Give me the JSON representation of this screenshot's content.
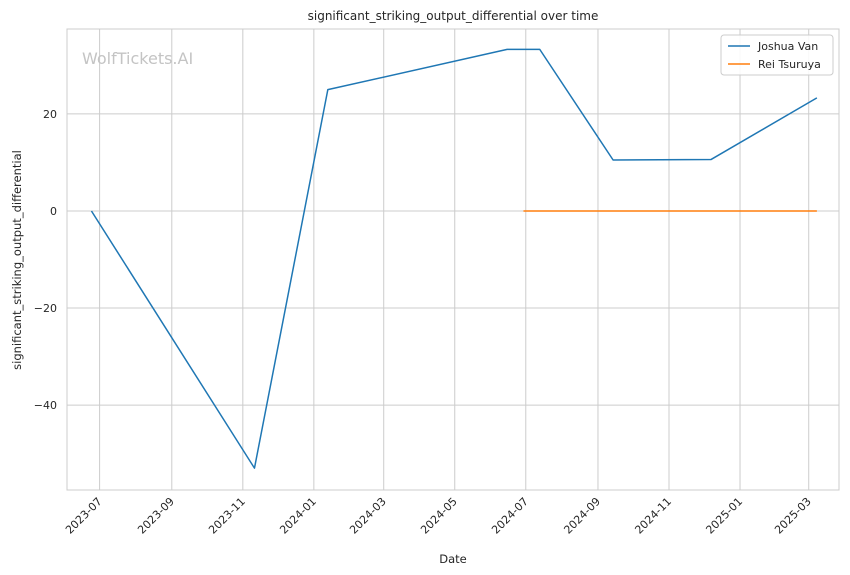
{
  "chart_data": {
    "type": "line",
    "title": "significant_striking_output_differential over time",
    "xlabel": "Date",
    "ylabel": "significant_striking_output_differential",
    "watermark": "WolfTickets.AI",
    "x_axis": "date",
    "xlim": [
      "2023-06-03",
      "2025-03-27"
    ],
    "ylim": [
      -57.5,
      37.5
    ],
    "x_ticks": [
      "2023-07",
      "2023-09",
      "2023-11",
      "2024-01",
      "2024-03",
      "2024-05",
      "2024-07",
      "2024-09",
      "2024-11",
      "2025-01",
      "2025-03"
    ],
    "x_tick_dates": [
      "2023-07-01",
      "2023-09-01",
      "2023-11-01",
      "2024-01-01",
      "2024-03-01",
      "2024-05-01",
      "2024-07-01",
      "2024-09-01",
      "2024-11-01",
      "2025-01-01",
      "2025-03-01"
    ],
    "y_ticks": [
      -40,
      -20,
      0,
      20
    ],
    "y_tick_labels": [
      "−40",
      "−20",
      "0",
      "20"
    ],
    "grid": true,
    "legend_position": "top-right",
    "series": [
      {
        "name": "Joshua Van",
        "color": "#1f77b4",
        "x": [
          "2023-06-24",
          "2023-11-11",
          "2024-01-13",
          "2024-06-15",
          "2024-07-13",
          "2024-09-14",
          "2024-12-07",
          "2025-03-08"
        ],
        "y": [
          0,
          -53,
          25,
          33.3,
          33.3,
          10.5,
          10.6,
          23.3
        ]
      },
      {
        "name": "Rei Tsuruya",
        "color": "#ff7f0e",
        "x": [
          "2024-06-29",
          "2025-03-08"
        ],
        "y": [
          0,
          0
        ]
      }
    ]
  }
}
